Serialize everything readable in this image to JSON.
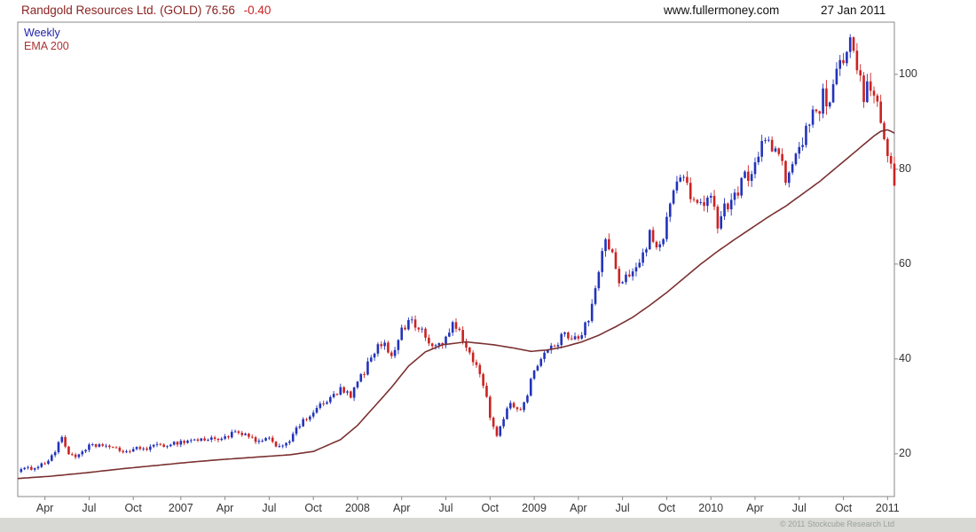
{
  "header": {
    "title": "Randgold Resources Ltd. (GOLD) 76.56",
    "change": "-0.40",
    "website": "www.fullermoney.com",
    "date": "27 Jan 2011"
  },
  "legend": {
    "timeframe": "Weekly",
    "indicator": "EMA 200"
  },
  "footer": {
    "copyright": "© 2011 Stockcube Research Ltd"
  },
  "colors": {
    "title": "#8b1f1f",
    "change": "#cc2222",
    "header_right": "#111111",
    "up": "#2233bb",
    "down": "#cc2222",
    "ema": "#7b3030",
    "legend_weekly": "#2222aa",
    "legend_ema": "#aa3333",
    "axis": "#888888",
    "tick_label": "#333333"
  },
  "chart_data": {
    "type": "candlestick",
    "title": "Randgold Resources Ltd. (GOLD)",
    "timeframe": "weekly",
    "last_price": 76.56,
    "last_change": -0.4,
    "weeks_total": 258,
    "x_tick_labels": [
      "Apr",
      "Jul",
      "Oct",
      "2007",
      "Apr",
      "Jul",
      "Oct",
      "2008",
      "Apr",
      "Jul",
      "Oct",
      "2009",
      "Apr",
      "Jul",
      "Oct",
      "2010",
      "Apr",
      "Jul",
      "Oct",
      "2011"
    ],
    "x_tick_weeks": [
      8,
      21,
      34,
      48,
      61,
      74,
      87,
      100,
      113,
      126,
      139,
      152,
      165,
      178,
      191,
      204,
      217,
      230,
      243,
      256
    ],
    "y_ticks": [
      20,
      40,
      60,
      80,
      100
    ],
    "y_range": [
      11,
      111
    ],
    "grid": false,
    "legend_position": "top-left",
    "price_close_anchors": [
      [
        0,
        16.5
      ],
      [
        4,
        17
      ],
      [
        8,
        18
      ],
      [
        11,
        20.5
      ],
      [
        13,
        23.5
      ],
      [
        15,
        20
      ],
      [
        18,
        19.5
      ],
      [
        21,
        21.5
      ],
      [
        25,
        22
      ],
      [
        28,
        21
      ],
      [
        32,
        20.5
      ],
      [
        35,
        21
      ],
      [
        40,
        21.5
      ],
      [
        44,
        22
      ],
      [
        48,
        22.5
      ],
      [
        52,
        23
      ],
      [
        56,
        23
      ],
      [
        61,
        23.5
      ],
      [
        64,
        24.5
      ],
      [
        68,
        23.5
      ],
      [
        71,
        22.5
      ],
      [
        74,
        23
      ],
      [
        77,
        21.5
      ],
      [
        80,
        23
      ],
      [
        83,
        26
      ],
      [
        87,
        29
      ],
      [
        91,
        31
      ],
      [
        95,
        33.5
      ],
      [
        98,
        32
      ],
      [
        100,
        35
      ],
      [
        104,
        40
      ],
      [
        107,
        43.5
      ],
      [
        110,
        41
      ],
      [
        113,
        46
      ],
      [
        116,
        48.5
      ],
      [
        119,
        45.5
      ],
      [
        122,
        42.5
      ],
      [
        126,
        44
      ],
      [
        128,
        47.5
      ],
      [
        131,
        44
      ],
      [
        134,
        40
      ],
      [
        137,
        35
      ],
      [
        139,
        28
      ],
      [
        141,
        24
      ],
      [
        143,
        27
      ],
      [
        145,
        31
      ],
      [
        148,
        29
      ],
      [
        150,
        33
      ],
      [
        152,
        38
      ],
      [
        155,
        41
      ],
      [
        158,
        43
      ],
      [
        161,
        45
      ],
      [
        165,
        45
      ],
      [
        168,
        48
      ],
      [
        171,
        58
      ],
      [
        173,
        66
      ],
      [
        175,
        62
      ],
      [
        177,
        55
      ],
      [
        180,
        58
      ],
      [
        183,
        61
      ],
      [
        186,
        66
      ],
      [
        189,
        63
      ],
      [
        191,
        70
      ],
      [
        194,
        77
      ],
      [
        196,
        79
      ],
      [
        199,
        73
      ],
      [
        202,
        71
      ],
      [
        204,
        76
      ],
      [
        206,
        69
      ],
      [
        209,
        73
      ],
      [
        212,
        76
      ],
      [
        215,
        79
      ],
      [
        217,
        82
      ],
      [
        220,
        86
      ],
      [
        223,
        84
      ],
      [
        226,
        78
      ],
      [
        229,
        83
      ],
      [
        232,
        88
      ],
      [
        235,
        92
      ],
      [
        237,
        95
      ],
      [
        239,
        93
      ],
      [
        241,
        99
      ],
      [
        243,
        104
      ],
      [
        245,
        107
      ],
      [
        246,
        104
      ],
      [
        248,
        98
      ],
      [
        249,
        95
      ],
      [
        251,
        98
      ],
      [
        253,
        93
      ],
      [
        255,
        88
      ],
      [
        256,
        84
      ],
      [
        257,
        80
      ],
      [
        258,
        77
      ]
    ],
    "ema_anchors": [
      [
        0,
        14.8
      ],
      [
        10,
        15.3
      ],
      [
        20,
        16
      ],
      [
        30,
        16.8
      ],
      [
        40,
        17.5
      ],
      [
        50,
        18.2
      ],
      [
        60,
        18.8
      ],
      [
        70,
        19.3
      ],
      [
        80,
        19.8
      ],
      [
        87,
        20.5
      ],
      [
        95,
        23
      ],
      [
        100,
        26
      ],
      [
        105,
        30
      ],
      [
        110,
        34
      ],
      [
        115,
        38.5
      ],
      [
        120,
        41.5
      ],
      [
        125,
        43
      ],
      [
        132,
        43.6
      ],
      [
        140,
        43
      ],
      [
        146,
        42.3
      ],
      [
        151,
        41.6
      ],
      [
        156,
        41.9
      ],
      [
        161,
        42.6
      ],
      [
        166,
        43.6
      ],
      [
        171,
        45
      ],
      [
        176,
        46.8
      ],
      [
        181,
        48.8
      ],
      [
        186,
        51.3
      ],
      [
        191,
        54
      ],
      [
        196,
        57
      ],
      [
        201,
        60
      ],
      [
        206,
        62.7
      ],
      [
        211,
        65.2
      ],
      [
        216,
        67.6
      ],
      [
        221,
        70
      ],
      [
        226,
        72.2
      ],
      [
        231,
        74.8
      ],
      [
        236,
        77.4
      ],
      [
        241,
        80.4
      ],
      [
        246,
        83.4
      ],
      [
        249,
        85.2
      ],
      [
        252,
        87
      ],
      [
        254,
        88
      ],
      [
        256,
        88.3
      ],
      [
        257,
        88
      ],
      [
        258,
        87.6
      ]
    ]
  }
}
